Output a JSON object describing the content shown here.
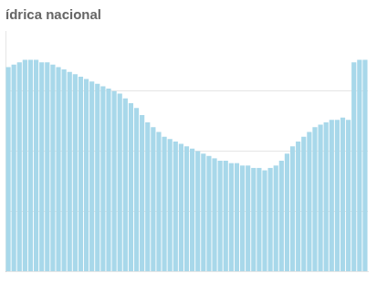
{
  "chart_data": {
    "type": "bar",
    "title": "ídrica nacional",
    "categories": [
      null,
      null,
      null,
      null,
      null,
      null,
      null,
      null,
      null,
      null,
      null,
      null,
      null,
      null,
      null,
      null,
      null,
      null,
      null,
      null,
      null,
      null,
      null,
      null,
      null,
      null,
      null,
      null,
      null,
      null,
      null,
      null,
      null,
      null,
      null,
      null,
      null,
      null,
      null,
      null,
      null,
      null,
      null,
      null,
      null,
      null,
      null,
      null,
      null,
      null,
      null,
      null,
      null,
      null,
      null,
      null,
      null,
      null,
      null,
      null,
      null,
      null,
      null,
      null,
      null
    ],
    "values": [
      85,
      86,
      87,
      88,
      88,
      88,
      87,
      87,
      86,
      85,
      84,
      83,
      82,
      81,
      80,
      79,
      78,
      77,
      76,
      75,
      74,
      72,
      70,
      68,
      65,
      62,
      60,
      58,
      56,
      55,
      54,
      53,
      52,
      51,
      50,
      49,
      48,
      47,
      46,
      46,
      45,
      45,
      44,
      44,
      43,
      43,
      42,
      43,
      44,
      46,
      49,
      52,
      54,
      56,
      58,
      60,
      61,
      62,
      63,
      63,
      64,
      63,
      87,
      88,
      88
    ],
    "color": "#a8d8ea",
    "ylim": [
      0,
      100
    ],
    "yticks": [
      25,
      50,
      75
    ],
    "grid": true,
    "tick_labels": false
  }
}
